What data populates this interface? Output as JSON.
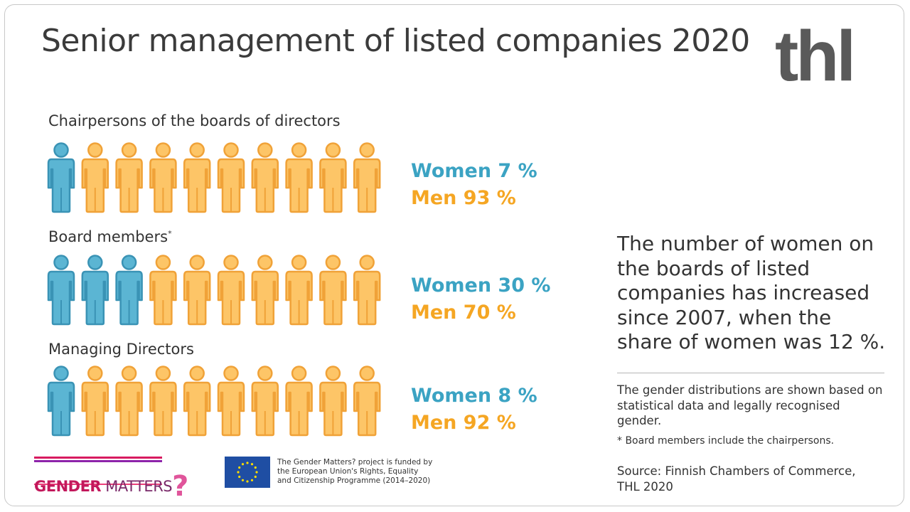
{
  "title": "Senior management of listed companies 2020",
  "logo": "thl",
  "colors": {
    "women": "#5bb5d3",
    "women_stroke": "#3a93b5",
    "men": "#fdc567",
    "men_stroke": "#f0a238",
    "women_text": "#3ba3c3",
    "men_text": "#f5a623"
  },
  "chart_data": [
    {
      "type": "pictogram",
      "title": "Chairpersons of the boards of directors",
      "icons_total": 10,
      "series": [
        {
          "name": "Women",
          "value": 7,
          "label": "Women 7 %",
          "icons": 1
        },
        {
          "name": "Men",
          "value": 93,
          "label": "Men 93 %",
          "icons": 9
        }
      ]
    },
    {
      "type": "pictogram",
      "title": "Board members",
      "footnote_mark": "*",
      "icons_total": 10,
      "series": [
        {
          "name": "Women",
          "value": 30,
          "label": "Women 30 %",
          "icons": 3
        },
        {
          "name": "Men",
          "value": 70,
          "label": "Men 70 %",
          "icons": 7
        }
      ]
    },
    {
      "type": "pictogram",
      "title": "Managing Directors",
      "icons_total": 10,
      "series": [
        {
          "name": "Women",
          "value": 8,
          "label": "Women 8 %",
          "icons": 1
        },
        {
          "name": "Men",
          "value": 92,
          "label": "Men 92 %",
          "icons": 9
        }
      ]
    }
  ],
  "note": "The number of women on the boards of listed companies has increased since 2007, when the share of women was 12 %.",
  "disclaimer": "The gender distributions are shown based on statistical data and legally recognised gender.",
  "footnote": "* Board members include the chairpersons.",
  "source": "Source:  Finnish Chambers of Commerce, THL 2020",
  "footer": {
    "gender_bold": "GENDER",
    "gender_rest": " MATTERS",
    "question_mark": "?",
    "eu_text": "The Gender Matters? project is funded by the European Union's Rights, Equality and Citizenship Programme (2014–2020)"
  }
}
